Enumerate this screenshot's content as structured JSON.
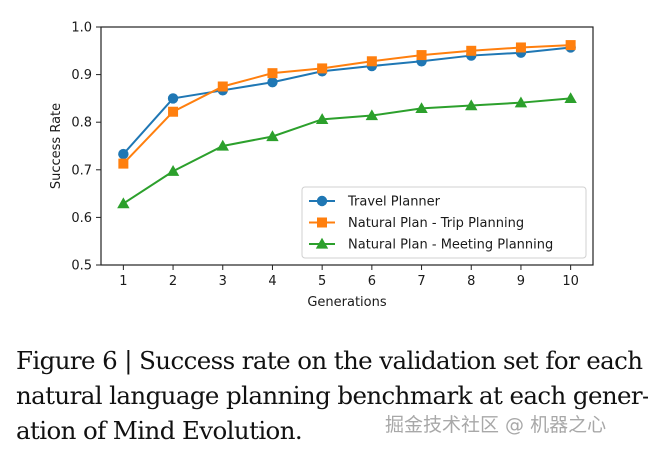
{
  "chart_data": {
    "type": "line",
    "title": "",
    "xlabel": "Generations",
    "ylabel": "Success Rate",
    "x": [
      1,
      2,
      3,
      4,
      5,
      6,
      7,
      8,
      9,
      10
    ],
    "xlim": [
      0.55,
      10.45
    ],
    "ylim": [
      0.5,
      1.0
    ],
    "xticks": [
      "1",
      "2",
      "3",
      "4",
      "5",
      "6",
      "7",
      "8",
      "9",
      "10"
    ],
    "yticks": [
      "0.5",
      "0.6",
      "0.7",
      "0.8",
      "0.9",
      "1.0"
    ],
    "ytick_values": [
      0.5,
      0.6,
      0.7,
      0.8,
      0.9,
      1.0
    ],
    "grid": false,
    "legend_position": "lower-right",
    "series": [
      {
        "name": "Travel Planner",
        "color": "#1f77b4",
        "marker": "circle",
        "values": [
          0.733,
          0.85,
          0.867,
          0.884,
          0.907,
          0.918,
          0.928,
          0.94,
          0.946,
          0.957
        ]
      },
      {
        "name": "Natural Plan - Trip Planning",
        "color": "#ff7f0e",
        "marker": "square",
        "values": [
          0.713,
          0.822,
          0.875,
          0.903,
          0.913,
          0.928,
          0.941,
          0.95,
          0.957,
          0.962
        ]
      },
      {
        "name": "Natural Plan - Meeting Planning",
        "color": "#2ca02c",
        "marker": "triangle",
        "values": [
          0.629,
          0.697,
          0.75,
          0.77,
          0.806,
          0.814,
          0.829,
          0.835,
          0.841,
          0.85
        ]
      }
    ]
  },
  "caption": {
    "lines": [
      "Figure 6 | Success rate on the validation set for each",
      "natural language planning benchmark at each gener-",
      "ation of Mind Evolution."
    ]
  },
  "watermark": "掘金技术社区 @ 机器之心"
}
